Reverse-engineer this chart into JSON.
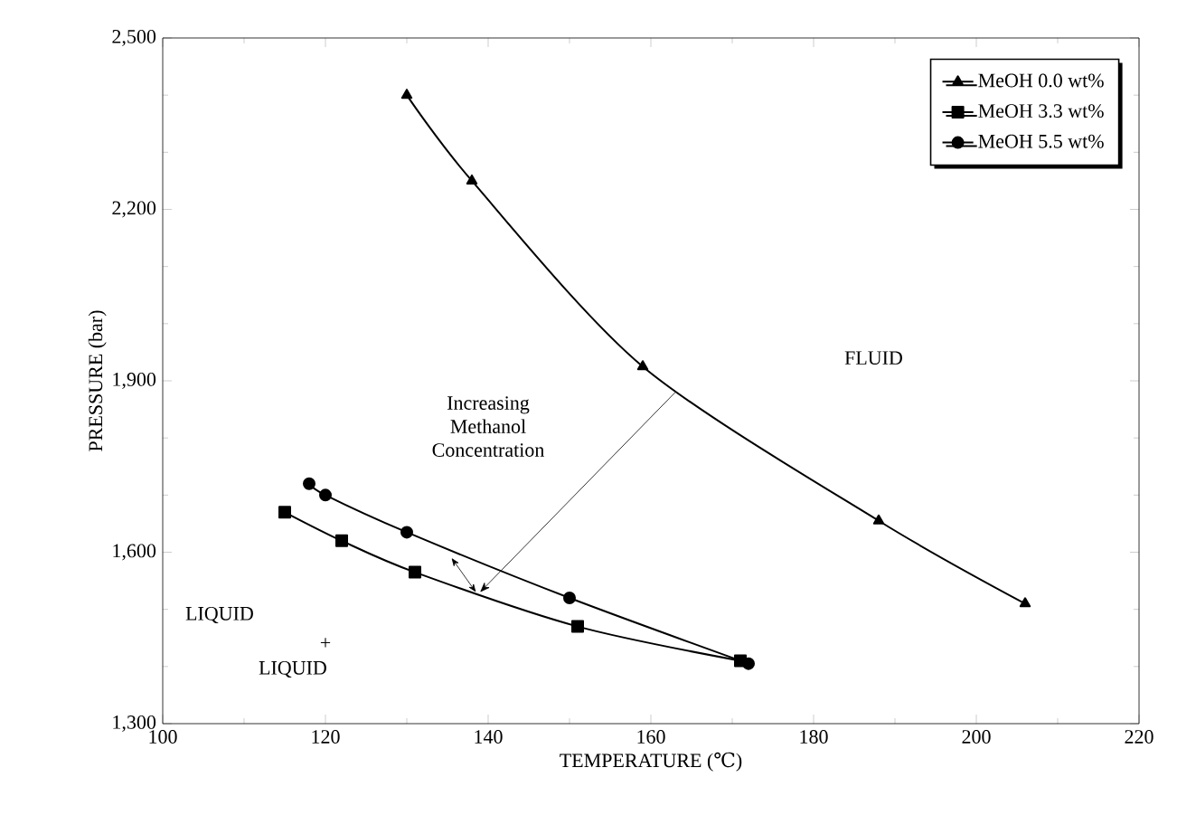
{
  "chart_data": {
    "type": "line",
    "xlabel": "TEMPERATURE (℃)",
    "ylabel": "PRESSURE (bar)",
    "xlim": [
      100,
      220
    ],
    "xticks": [
      100,
      120,
      140,
      160,
      180,
      200,
      220
    ],
    "ylim": [
      1300,
      2500
    ],
    "yticks": [
      {
        "value": 1300,
        "label": "1,300"
      },
      {
        "value": 1600,
        "label": "1,600"
      },
      {
        "value": 1900,
        "label": "1,900"
      },
      {
        "value": 2200,
        "label": "2,200"
      },
      {
        "value": 2500,
        "label": "2,500"
      }
    ],
    "series": [
      {
        "name": "MeOH 0.0 wt%",
        "color": "#000000",
        "marker": "triangle",
        "x": [
          130,
          138,
          159,
          188,
          206
        ],
        "values": [
          2400,
          2250,
          1925,
          1655,
          1510
        ]
      },
      {
        "name": "MeOH 3.3 wt%",
        "color": "#000000",
        "marker": "square",
        "x": [
          115,
          122,
          131,
          151,
          171
        ],
        "values": [
          1670,
          1620,
          1565,
          1470,
          1410
        ]
      },
      {
        "name": "MeOH 5.5 wt%",
        "color": "#000000",
        "marker": "circle",
        "x": [
          118,
          120,
          130,
          150,
          172
        ],
        "values": [
          1720,
          1700,
          1635,
          1520,
          1405
        ]
      }
    ],
    "line_style": "solid",
    "legend": "top right",
    "grid": false,
    "annotations": [
      "FLUID",
      "Increasing Methanol Concentration",
      "LIQUID",
      "+",
      "LIQUID"
    ]
  }
}
